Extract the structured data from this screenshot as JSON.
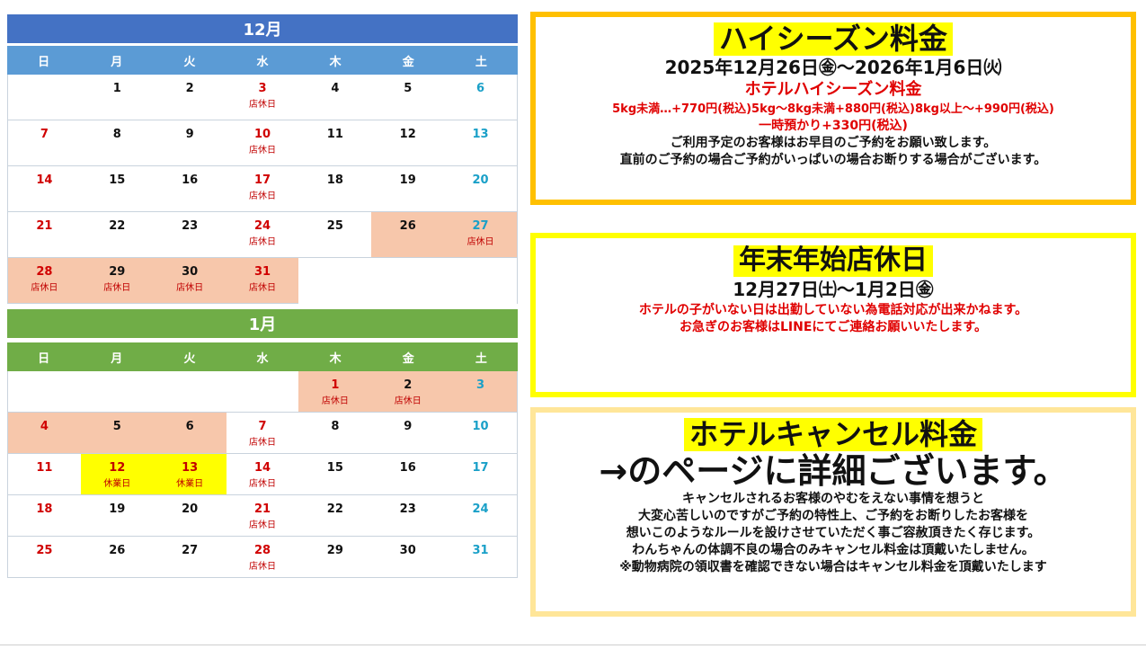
{
  "dec": {
    "title": "12月",
    "weekdays": [
      "日",
      "月",
      "火",
      "水",
      "木",
      "金",
      "土"
    ],
    "rows": [
      [
        {
          "d": ""
        },
        {
          "d": "1"
        },
        {
          "d": "2"
        },
        {
          "d": "3",
          "c": "red",
          "n": "店休日"
        },
        {
          "d": "4"
        },
        {
          "d": "5"
        },
        {
          "d": "6",
          "c": "blue"
        }
      ],
      [
        {
          "d": "7",
          "c": "red"
        },
        {
          "d": "8"
        },
        {
          "d": "9"
        },
        {
          "d": "10",
          "c": "red",
          "n": "店休日"
        },
        {
          "d": "11"
        },
        {
          "d": "12"
        },
        {
          "d": "13",
          "c": "blue"
        }
      ],
      [
        {
          "d": "14",
          "c": "red"
        },
        {
          "d": "15"
        },
        {
          "d": "16"
        },
        {
          "d": "17",
          "c": "red",
          "n": "店休日"
        },
        {
          "d": "18"
        },
        {
          "d": "19"
        },
        {
          "d": "20",
          "c": "blue"
        }
      ],
      [
        {
          "d": "21",
          "c": "red"
        },
        {
          "d": "22"
        },
        {
          "d": "23"
        },
        {
          "d": "24",
          "c": "red",
          "n": "店休日"
        },
        {
          "d": "25"
        },
        {
          "d": "26",
          "bg": "peach"
        },
        {
          "d": "27",
          "c": "blue",
          "bg": "peach",
          "n": "店休日"
        }
      ],
      [
        {
          "d": "28",
          "c": "red",
          "bg": "peach",
          "n": "店休日"
        },
        {
          "d": "29",
          "bg": "peach",
          "n": "店休日"
        },
        {
          "d": "30",
          "bg": "peach",
          "n": "店休日"
        },
        {
          "d": "31",
          "c": "red",
          "bg": "peach",
          "n": "店休日"
        },
        {
          "d": "",
          "blank": true
        },
        {
          "d": "",
          "blank": true
        },
        {
          "d": "",
          "blank": true
        }
      ]
    ]
  },
  "jan": {
    "title": "1月",
    "weekdays": [
      "日",
      "月",
      "火",
      "水",
      "木",
      "金",
      "土"
    ],
    "rows": [
      [
        {
          "d": ""
        },
        {
          "d": ""
        },
        {
          "d": ""
        },
        {
          "d": ""
        },
        {
          "d": "1",
          "c": "red",
          "bg": "peach",
          "n": "店休日"
        },
        {
          "d": "2",
          "bg": "peach",
          "n": "店休日"
        },
        {
          "d": "3",
          "c": "blue",
          "bg": "peach"
        }
      ],
      [
        {
          "d": "4",
          "c": "red",
          "bg": "peach"
        },
        {
          "d": "5",
          "bg": "peach"
        },
        {
          "d": "6",
          "bg": "peach"
        },
        {
          "d": "7",
          "c": "red",
          "n": "店休日"
        },
        {
          "d": "8"
        },
        {
          "d": "9"
        },
        {
          "d": "10",
          "c": "blue"
        }
      ],
      [
        {
          "d": "11",
          "c": "red"
        },
        {
          "d": "12",
          "bg": "yellow",
          "n": "休業日"
        },
        {
          "d": "13",
          "bg": "yellow",
          "n": "休業日"
        },
        {
          "d": "14",
          "c": "red",
          "n": "店休日"
        },
        {
          "d": "15"
        },
        {
          "d": "16"
        },
        {
          "d": "17",
          "c": "blue"
        }
      ],
      [
        {
          "d": "18",
          "c": "red"
        },
        {
          "d": "19"
        },
        {
          "d": "20"
        },
        {
          "d": "21",
          "c": "red",
          "n": "店休日"
        },
        {
          "d": "22"
        },
        {
          "d": "23"
        },
        {
          "d": "24",
          "c": "blue"
        }
      ],
      [
        {
          "d": "25",
          "c": "red"
        },
        {
          "d": "26"
        },
        {
          "d": "27"
        },
        {
          "d": "28",
          "c": "red",
          "n": "店休日"
        },
        {
          "d": "29"
        },
        {
          "d": "30"
        },
        {
          "d": "31",
          "c": "blue"
        }
      ]
    ]
  },
  "high_season": {
    "title": "ハイシーズン料金",
    "dates": "2025年12月26日㊎～2026年1月6日㈫",
    "subtitle": "ホテルハイシーズン料金",
    "price1": "5kg未満…+770円(税込)5kg～8kg未満+880円(税込)8kg以上～+990円(税込)",
    "price2": "一時預かり+330円(税込)",
    "note1": "ご利用予定のお客様はお早目のご予約をお願い致します。",
    "note2": "直前のご予約の場合ご予約がいっぱいの場合お断りする場合がございます。"
  },
  "closing": {
    "title": "年末年始店休日",
    "dates": "12月27日㈯～1月2日㊎",
    "note1": "ホテルの子がいない日は出勤していない為電話対応が出来かねます。",
    "note2": "お急ぎのお客様はLINEにてご連絡お願いいたします。"
  },
  "cancel": {
    "title": "ホテルキャンセル料金",
    "subtitle": "→のページに詳細ございます。",
    "lines": [
      "キャンセルされるお客様のやむをえない事情を想うと",
      "大変心苦しいのですがご予約の特性上、ご予約をお断りしたお客様を",
      "想いこのようなルールを設けさせていただく事ご容赦頂きたく存じます。",
      "わんちゃんの体調不良の場合のみキャンセル料金は頂戴いたしません。",
      "※動物病院の領収書を確認できない場合はキャンセル料金を頂戴いたします"
    ]
  },
  "colors": {
    "dec_title_bg": "#4472c4",
    "dec_head_bg": "#5b9bd5",
    "jan_title_bg": "#70ad47",
    "jan_head_bg": "#70ad47",
    "panel1_border": "#ffc000",
    "panel2_border": "#ffff00",
    "panel3_border": "#ffe699"
  }
}
